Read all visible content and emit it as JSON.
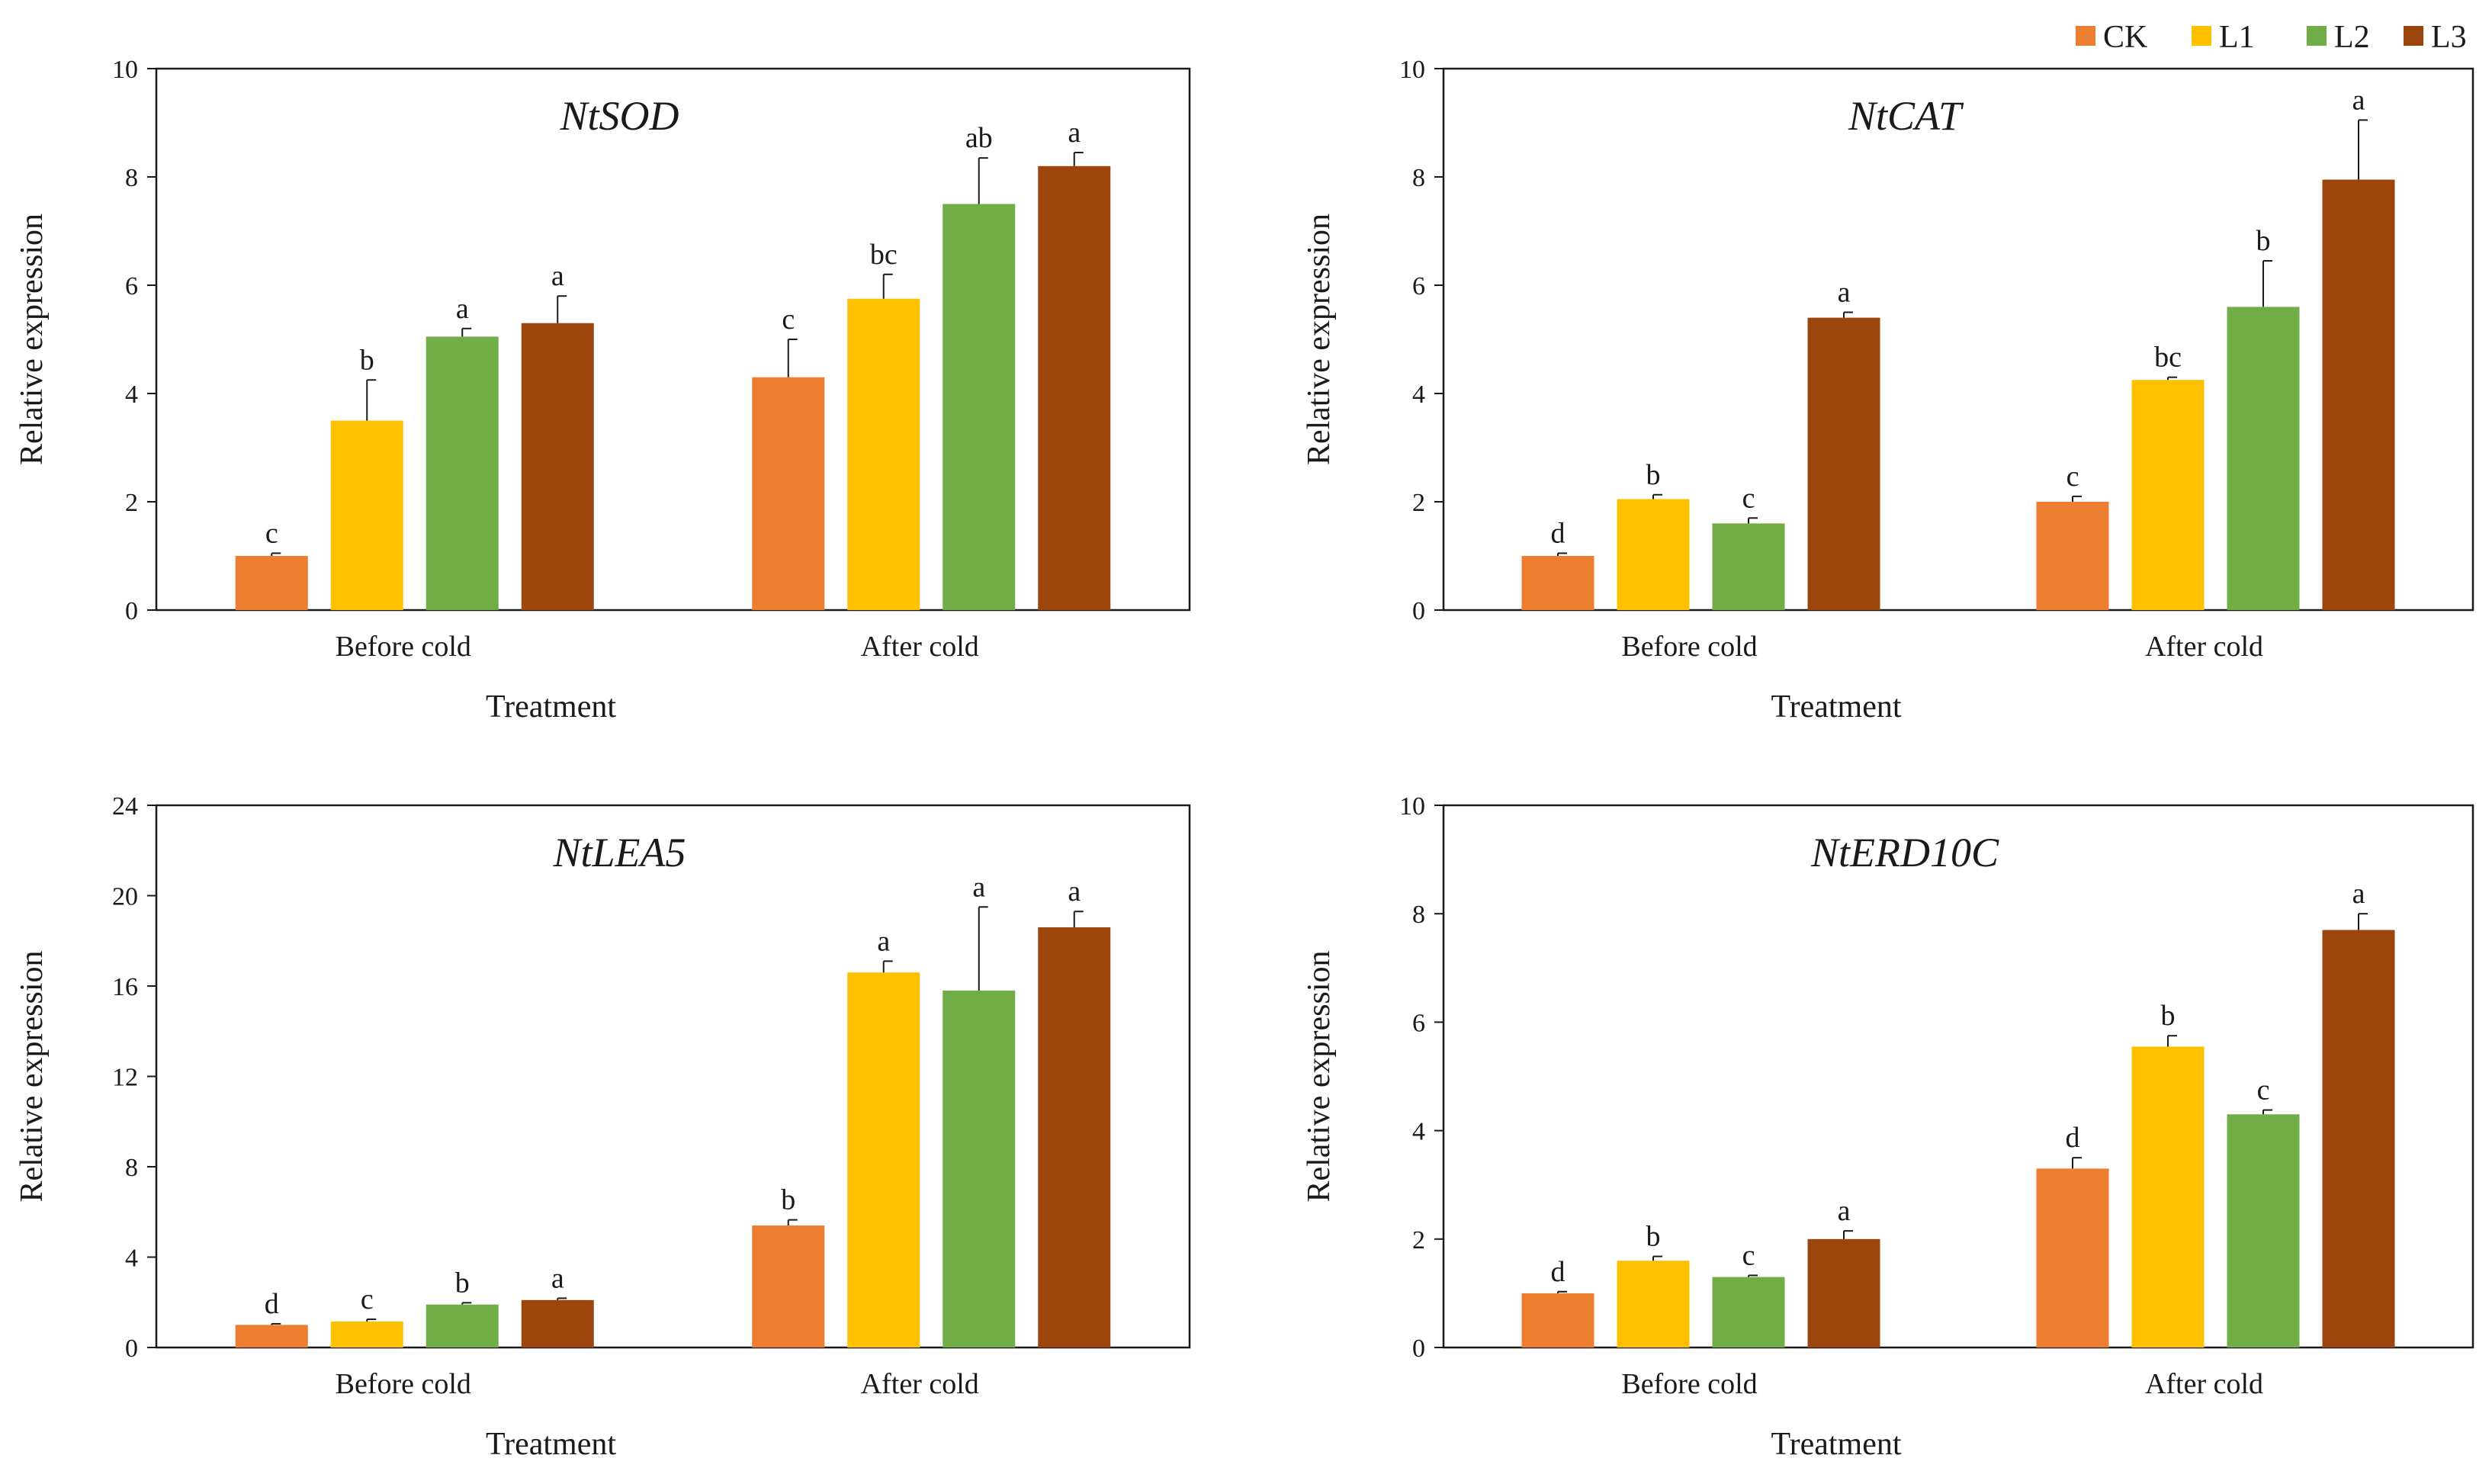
{
  "legend": {
    "items": [
      {
        "label": "CK",
        "color": "#ED7D31"
      },
      {
        "label": "L1",
        "color": "#FFC000"
      },
      {
        "label": "L2",
        "color": "#70AD47"
      },
      {
        "label": "L3",
        "color": "#9C450C"
      }
    ]
  },
  "chart_data": [
    {
      "type": "bar",
      "title": "NtSOD",
      "xlabel": "Treatment",
      "ylabel": "Relative  expression",
      "categories": [
        "Before cold",
        "After cold"
      ],
      "ylim": [
        0,
        10
      ],
      "yticks": [
        0,
        2,
        4,
        6,
        8,
        10
      ],
      "series": [
        {
          "name": "CK",
          "values": [
            1.0,
            4.3
          ],
          "errors": [
            0.05,
            0.7
          ],
          "labels": [
            "c",
            "c"
          ]
        },
        {
          "name": "L1",
          "values": [
            3.5,
            5.75
          ],
          "errors": [
            0.75,
            0.45
          ],
          "labels": [
            "b",
            "bc"
          ]
        },
        {
          "name": "L2",
          "values": [
            5.05,
            7.5
          ],
          "errors": [
            0.15,
            0.85
          ],
          "labels": [
            "a",
            "ab"
          ]
        },
        {
          "name": "L3",
          "values": [
            5.3,
            8.2
          ],
          "errors": [
            0.5,
            0.25
          ],
          "labels": [
            "a",
            "a"
          ]
        }
      ]
    },
    {
      "type": "bar",
      "title": "NtCAT",
      "xlabel": "Treatment",
      "ylabel": "Relative  expression",
      "categories": [
        "Before cold",
        "After cold"
      ],
      "ylim": [
        0,
        10
      ],
      "yticks": [
        0,
        2,
        4,
        6,
        8,
        10
      ],
      "series": [
        {
          "name": "CK",
          "values": [
            1.0,
            2.0
          ],
          "errors": [
            0.05,
            0.1
          ],
          "labels": [
            "d",
            "c"
          ]
        },
        {
          "name": "L1",
          "values": [
            2.05,
            4.25
          ],
          "errors": [
            0.08,
            0.05
          ],
          "labels": [
            "b",
            "bc"
          ]
        },
        {
          "name": "L2",
          "values": [
            1.6,
            5.6
          ],
          "errors": [
            0.1,
            0.85
          ],
          "labels": [
            "c",
            "b"
          ]
        },
        {
          "name": "L3",
          "values": [
            5.4,
            7.95
          ],
          "errors": [
            0.1,
            1.1
          ],
          "labels": [
            "a",
            "a"
          ]
        }
      ]
    },
    {
      "type": "bar",
      "title": "NtLEA5",
      "xlabel": "Treatment",
      "ylabel": "Relative  expression",
      "categories": [
        "Before cold",
        "After cold"
      ],
      "ylim": [
        0,
        24
      ],
      "yticks": [
        0,
        4,
        8,
        12,
        16,
        20,
        24
      ],
      "series": [
        {
          "name": "CK",
          "values": [
            1.0,
            5.4
          ],
          "errors": [
            0.05,
            0.25
          ],
          "labels": [
            "d",
            "b"
          ]
        },
        {
          "name": "L1",
          "values": [
            1.15,
            16.6
          ],
          "errors": [
            0.1,
            0.5
          ],
          "labels": [
            "c",
            "a"
          ]
        },
        {
          "name": "L2",
          "values": [
            1.9,
            15.8
          ],
          "errors": [
            0.08,
            3.7
          ],
          "labels": [
            "b",
            "a"
          ]
        },
        {
          "name": "L3",
          "values": [
            2.1,
            18.6
          ],
          "errors": [
            0.08,
            0.7
          ],
          "labels": [
            "a",
            "a"
          ]
        }
      ]
    },
    {
      "type": "bar",
      "title": "NtERD10C",
      "xlabel": "Treatment",
      "ylabel": "Relative  expression",
      "categories": [
        "Before cold",
        "After cold"
      ],
      "ylim": [
        0,
        10
      ],
      "yticks": [
        0,
        2,
        4,
        6,
        8,
        10
      ],
      "series": [
        {
          "name": "CK",
          "values": [
            1.0,
            3.3
          ],
          "errors": [
            0.03,
            0.2
          ],
          "labels": [
            "d",
            "d"
          ]
        },
        {
          "name": "L1",
          "values": [
            1.6,
            5.55
          ],
          "errors": [
            0.08,
            0.2
          ],
          "labels": [
            "b",
            "b"
          ]
        },
        {
          "name": "L2",
          "values": [
            1.3,
            4.3
          ],
          "errors": [
            0.03,
            0.08
          ],
          "labels": [
            "c",
            "c"
          ]
        },
        {
          "name": "L3",
          "values": [
            2.0,
            7.7
          ],
          "errors": [
            0.15,
            0.3
          ],
          "labels": [
            "a",
            "a"
          ]
        }
      ]
    }
  ]
}
